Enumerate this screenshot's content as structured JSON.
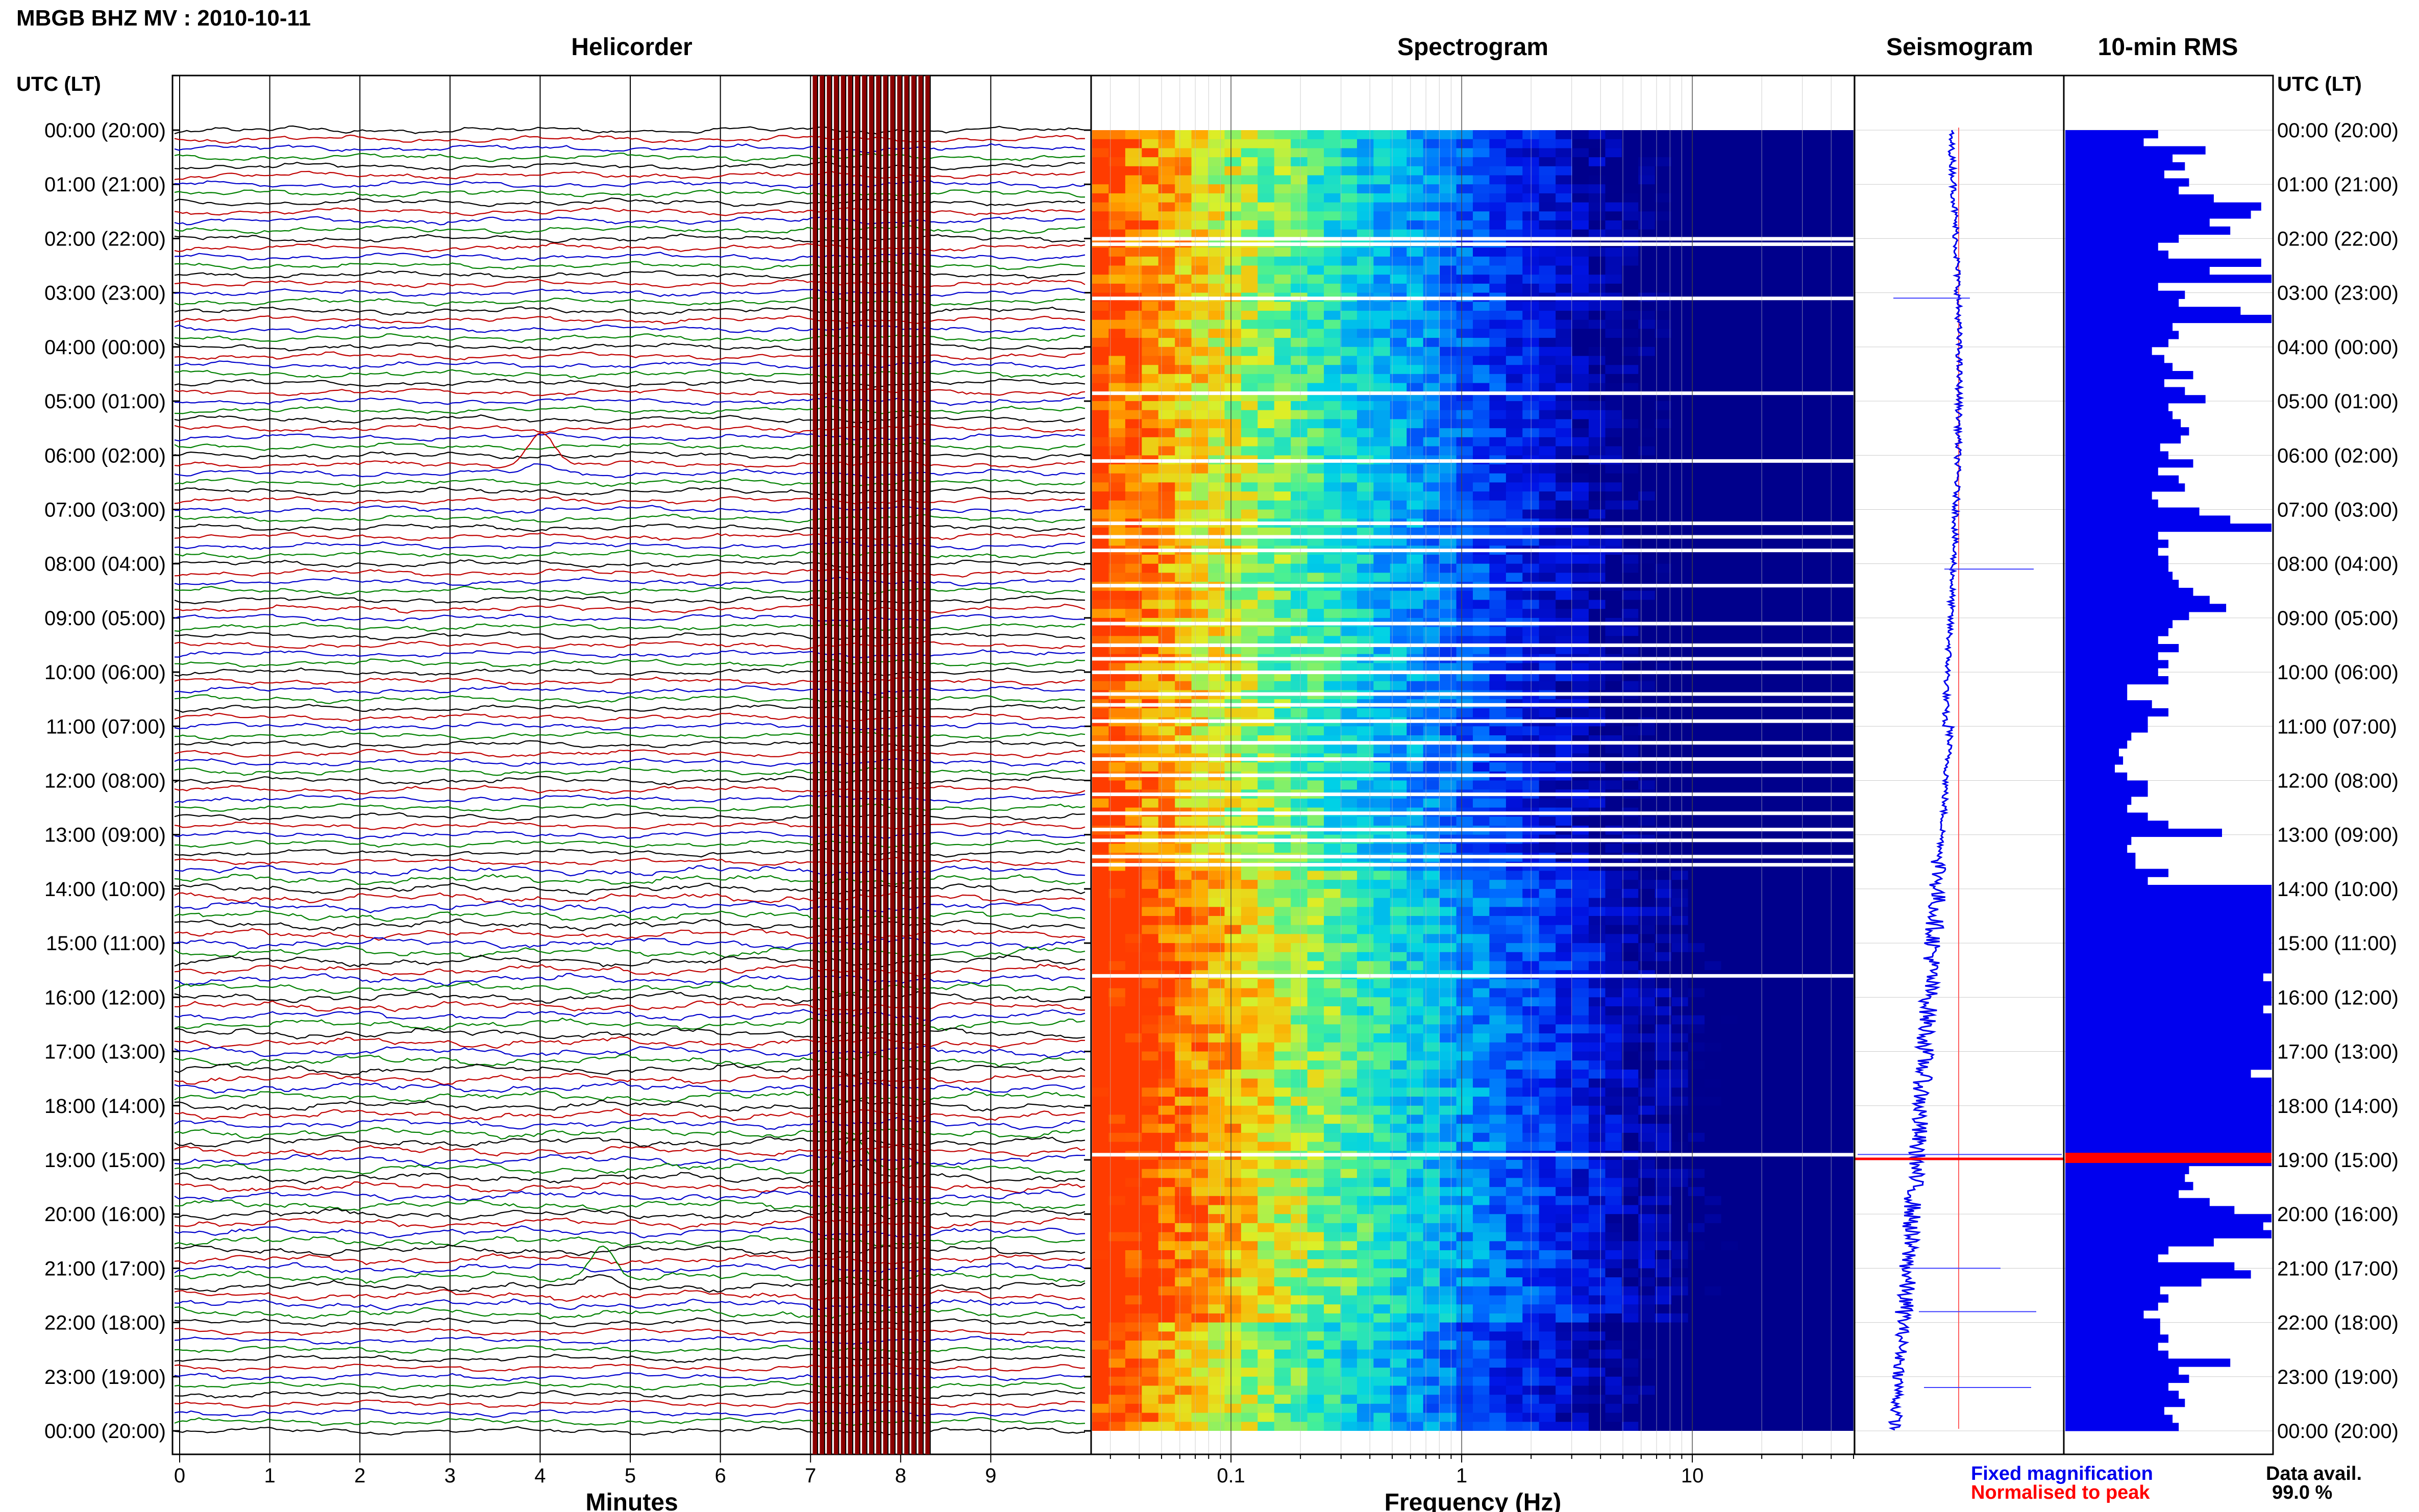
{
  "header": {
    "station_title": "MBGB BHZ MV : 2010-10-11",
    "utc_lt_label": "UTC (LT)"
  },
  "colors": {
    "trace_colors": [
      "#000000",
      "#c00000",
      "#0000cc",
      "#008000"
    ],
    "spectrogram_dark": "#00008c",
    "bar_blue": "#0000ee",
    "peak_red": "#ff0000",
    "clip_red": "#8b0000"
  },
  "chart_data": [
    {
      "type": "line",
      "title": "Helicorder",
      "xlabel": "Minutes",
      "x_ticks": [
        "0",
        "1",
        "2",
        "3",
        "4",
        "5",
        "6",
        "7",
        "8",
        "9"
      ],
      "xlim": [
        0,
        10
      ],
      "y_ticks": [
        "00:00 (20:00)",
        "01:00 (21:00)",
        "02:00 (22:00)",
        "03:00 (23:00)",
        "04:00 (00:00)",
        "05:00 (01:00)",
        "06:00 (02:00)",
        "07:00 (03:00)",
        "08:00 (04:00)",
        "09:00 (05:00)",
        "10:00 (06:00)",
        "11:00 (07:00)",
        "12:00 (08:00)",
        "13:00 (09:00)",
        "14:00 (10:00)",
        "15:00 (11:00)",
        "16:00 (12:00)",
        "17:00 (13:00)",
        "18:00 (14:00)",
        "19:00 (15:00)",
        "20:00 (16:00)",
        "21:00 (17:00)",
        "22:00 (18:00)",
        "23:00 (19:00)",
        "00:00 (20:00)"
      ],
      "traces_per_hour": 6,
      "saturated_interval_minutes": [
        7.05,
        8.3
      ],
      "events": [
        {
          "hour": 6.1,
          "minute": 4.0,
          "label": ""
        },
        {
          "hour": 19.1,
          "minute": 7.5,
          "label": ""
        },
        {
          "hour": 21.1,
          "minute": 4.7,
          "label": ""
        }
      ]
    },
    {
      "type": "heatmap",
      "title": "Spectrogram",
      "xlabel": "Frequency (Hz)",
      "x_scale": "log",
      "xlim": [
        0.025,
        50
      ],
      "x_ticks": [
        "0.1",
        "1",
        "10"
      ],
      "y_ticks_hours": [
        0,
        24
      ],
      "gap_hours": [
        2.0,
        2.1,
        3.1,
        4.85,
        6.1,
        7.25,
        7.5,
        7.75,
        8.4,
        9.1,
        9.5,
        9.75,
        10.0,
        10.4,
        10.6,
        10.9,
        11.3,
        11.6,
        11.9,
        12.25,
        12.6,
        12.9,
        13.1,
        13.4,
        13.55,
        15.6,
        18.9
      ]
    },
    {
      "type": "line",
      "title": "Seismogram",
      "legend": [
        "Fixed magnification",
        "Normalised to peak"
      ],
      "peak_hour": 19.0
    },
    {
      "type": "bar",
      "title": "10-min RMS",
      "orientation": "horizontal",
      "values_hour_fraction": [
        0.45,
        0.38,
        0.68,
        0.52,
        0.58,
        0.48,
        0.6,
        0.55,
        0.72,
        0.95,
        0.9,
        0.7,
        0.8,
        0.55,
        0.45,
        0.5,
        0.95,
        0.7,
        1.0,
        0.45,
        0.58,
        0.55,
        0.85,
        1.0,
        0.52,
        0.55,
        0.5,
        0.42,
        0.48,
        0.52,
        0.62,
        0.48,
        0.58,
        0.68,
        0.5,
        0.52,
        0.56,
        0.6,
        0.56,
        0.46,
        0.5,
        0.62,
        0.45,
        0.55,
        0.58,
        0.42,
        0.45,
        0.65,
        0.8,
        1.0,
        0.45,
        0.5,
        0.45,
        0.5,
        0.5,
        0.52,
        0.55,
        0.62,
        0.7,
        0.78,
        0.6,
        0.52,
        0.5,
        0.45,
        0.55,
        0.45,
        0.5,
        0.45,
        0.5,
        0.3,
        0.3,
        0.42,
        0.5,
        0.4,
        0.4,
        0.32,
        0.3,
        0.26,
        0.28,
        0.24,
        0.3,
        0.4,
        0.4,
        0.32,
        0.3,
        0.4,
        0.5,
        0.76,
        0.32,
        0.3,
        0.34,
        0.34,
        0.5,
        0.4,
        1.0,
        1.0,
        1.0,
        1.0,
        1.0,
        1.0,
        1.0,
        1.0,
        1.0,
        1.0,
        1.0,
        0.96,
        1.0,
        1.0,
        1.0,
        0.96,
        1.0,
        1.0,
        1.0,
        1.0,
        1.0,
        1.0,
        1.0,
        0.9,
        1.0,
        1.0,
        1.0,
        1.0,
        1.0,
        1.0,
        1.0,
        1.0,
        1.0,
        1.0,
        1.0,
        0.6,
        0.58,
        0.62,
        0.55,
        0.7,
        0.82,
        1.0,
        0.96,
        1.0,
        0.72,
        0.5,
        0.45,
        0.82,
        0.9,
        0.66,
        0.46,
        0.5,
        0.45,
        0.38,
        0.46,
        0.46,
        0.5,
        0.45,
        0.5,
        0.8,
        0.55,
        0.6,
        0.5,
        0.55,
        0.58,
        0.48,
        0.52,
        0.55
      ],
      "peak_hour": 19.0
    }
  ],
  "footer": {
    "legend_fixed": "Fixed magnification",
    "legend_normalised": "Normalised to peak",
    "data_avail_label": "Data avail.",
    "data_avail_value": "99.0 %"
  }
}
